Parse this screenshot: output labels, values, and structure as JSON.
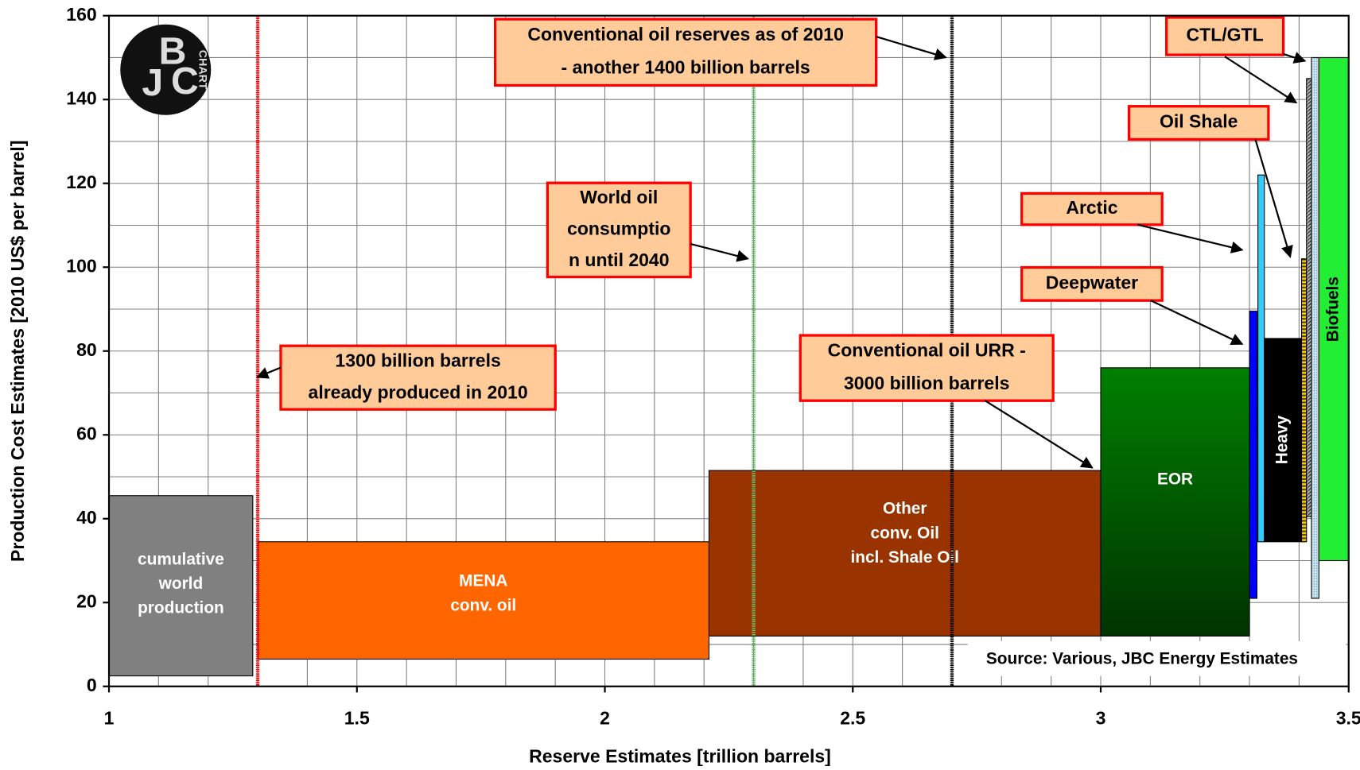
{
  "chart_data": {
    "type": "cost-curve",
    "xlabel": "Reserve Estimates [trillion barrels]",
    "ylabel": "Production Cost Estimates [2010 US$ per barrel]",
    "source": "Source: Various, JBC Energy Estimates",
    "logo": {
      "letters": [
        "J",
        "B",
        "C"
      ],
      "text": "CHART"
    },
    "xlim": [
      1,
      3.5
    ],
    "ylim": [
      0,
      160
    ],
    "xticks": [
      1,
      1.5,
      2,
      2.5,
      3,
      3.5
    ],
    "yticks": [
      0,
      20,
      40,
      60,
      80,
      100,
      120,
      140,
      160
    ],
    "xgrid": [
      1.1,
      1.2,
      1.3,
      1.4,
      1.6,
      1.7,
      1.8,
      1.9,
      2.1,
      2.2,
      2.3,
      2.4,
      2.6,
      2.7,
      2.8,
      2.9,
      3.1,
      3.2,
      3.3,
      3.4
    ],
    "ygrid": [
      10,
      30,
      50,
      70,
      90,
      110,
      130,
      150
    ],
    "grid": true,
    "blocks": [
      {
        "name": [
          "cumulative",
          "world",
          "production"
        ],
        "x": [
          1.0,
          1.29
        ],
        "y": [
          2.5,
          45.5
        ],
        "color": "#808080",
        "label": "inside"
      },
      {
        "name": [
          "MENA",
          "conv. oil"
        ],
        "x": [
          1.3,
          2.21
        ],
        "y": [
          6.5,
          34.5
        ],
        "color": "#ff6600",
        "label": "inside"
      },
      {
        "name": [
          "Other",
          "conv. Oil",
          "incl. Shale Oil"
        ],
        "x": [
          2.21,
          3.0
        ],
        "y": [
          12,
          51.5
        ],
        "color": "#993300",
        "label": "inside"
      },
      {
        "name": [
          "EOR"
        ],
        "x": [
          3.0,
          3.3
        ],
        "y": [
          12,
          76
        ],
        "color": "#006600",
        "label": "inside"
      },
      {
        "name": [
          "Deepwater"
        ],
        "x": [
          3.3,
          3.315
        ],
        "y": [
          21,
          89.5
        ],
        "color": "#0000ff",
        "label": "callout"
      },
      {
        "name": [
          "Arctic"
        ],
        "x": [
          3.317,
          3.33
        ],
        "y": [
          34.5,
          122
        ],
        "color": "#33ccff",
        "label": "callout"
      },
      {
        "name": [
          "Heavy"
        ],
        "x": [
          3.33,
          3.405
        ],
        "y": [
          34.5,
          83
        ],
        "color": "#000000",
        "label": "inside-rotated"
      },
      {
        "name": [
          "Oil Shale"
        ],
        "x": [
          3.405,
          3.415
        ],
        "y": [
          34.5,
          102
        ],
        "color": "#808000",
        "label": "callout"
      },
      {
        "name": [
          "CTL/GTL"
        ],
        "x": [
          3.415,
          3.425
        ],
        "y": [
          40.5,
          145
        ],
        "color": "#808080",
        "label": "callout"
      },
      {
        "name": null,
        "x": [
          3.425,
          3.44
        ],
        "y": [
          21,
          150
        ],
        "color": "#c6e4f2",
        "label": "none"
      },
      {
        "name": [
          "Biofuels"
        ],
        "x": [
          3.44,
          3.5
        ],
        "y": [
          30,
          150
        ],
        "color": "#22ee33",
        "label": "inside-rotated"
      }
    ],
    "vlines": [
      {
        "x": 1.3,
        "color": "#ff0000"
      },
      {
        "x": 2.3,
        "color": "#66bb66"
      },
      {
        "x": 2.7,
        "color": "#000000"
      }
    ],
    "annotations": [
      [
        "1300 billion barrels",
        "already produced in 2010"
      ],
      [
        "World oil",
        "consumptio",
        "n until 2040"
      ],
      [
        "Conventional oil reserves as of 2010",
        "- another 1400 billion barrels"
      ],
      [
        "Conventional oil URR -",
        "3000 billion barrels"
      ]
    ]
  }
}
